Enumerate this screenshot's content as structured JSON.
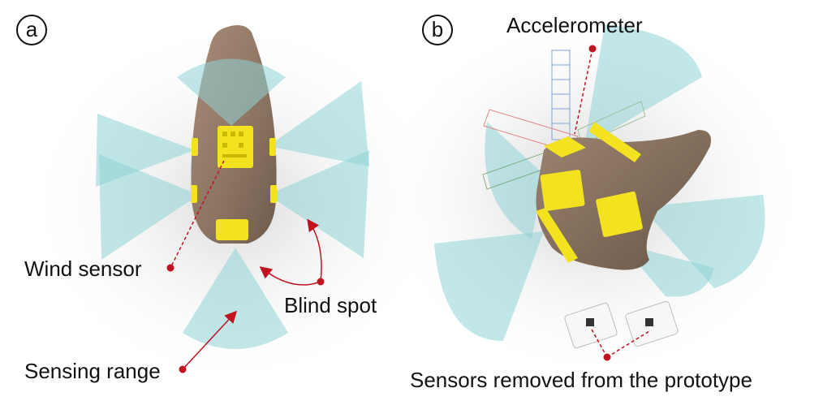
{
  "panels": [
    {
      "letter": "a"
    },
    {
      "letter": "b"
    }
  ],
  "labels": {
    "accelerometer": "Accelerometer",
    "wind_sensor": "Wind sensor",
    "blind_spot": "Blind spot",
    "sensing_range": "Sensing range",
    "sensors_removed": "Sensors removed from the prototype"
  },
  "colors": {
    "cone": "#8fd3d6",
    "body": "#8f7664",
    "sensor_board": "#f2e21f",
    "annotation": "#c1121f"
  }
}
